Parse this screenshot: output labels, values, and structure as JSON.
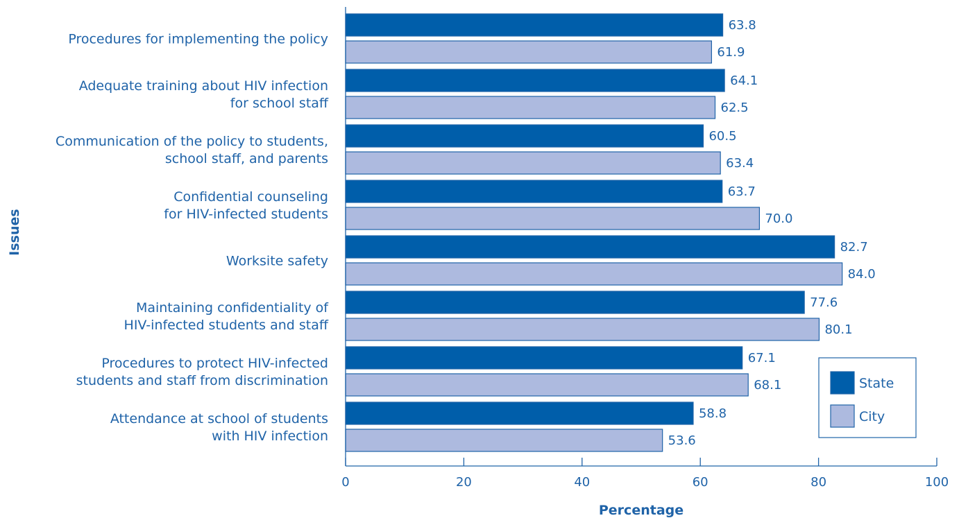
{
  "chart_data": {
    "type": "bar",
    "orientation": "horizontal",
    "categories": [
      [
        "Procedures for implementing the policy"
      ],
      [
        "Adequate training about HIV infection",
        "for school staff"
      ],
      [
        "Communication of the policy to students,",
        "school staff, and parents"
      ],
      [
        "Confidential counseling",
        "for HIV-infected students"
      ],
      [
        "Worksite safety"
      ],
      [
        "Maintaining confidentiality of",
        "HIV-infected students and staff"
      ],
      [
        "Procedures to protect HIV-infected",
        "students and staff from discrimination"
      ],
      [
        "Attendance at school of students",
        "with HIV infection"
      ]
    ],
    "series": [
      {
        "name": "State",
        "color": "#005eaa",
        "values": [
          63.8,
          64.1,
          60.5,
          63.7,
          82.7,
          77.6,
          67.1,
          58.8
        ],
        "labels": [
          "63.8",
          "64.1",
          "60.5",
          "63.7",
          "82.7",
          "77.6",
          "67.1",
          "58.8"
        ]
      },
      {
        "name": "City",
        "color": "#adbadf",
        "values": [
          61.9,
          62.5,
          63.4,
          70.0,
          84.0,
          80.1,
          68.1,
          53.6
        ],
        "labels": [
          "61.9",
          "62.5",
          "63.4",
          "70.0",
          "84.0",
          "80.1",
          "68.1",
          "53.6"
        ]
      }
    ],
    "xlabel": "Percentage",
    "ylabel": "Issues",
    "xlim": [
      0,
      100
    ],
    "xticks": [
      0,
      20,
      40,
      60,
      80,
      100
    ],
    "xtick_labels": [
      "0",
      "20",
      "40",
      "60",
      "80",
      "100"
    ],
    "grid": false,
    "legend": "bottom-right"
  }
}
